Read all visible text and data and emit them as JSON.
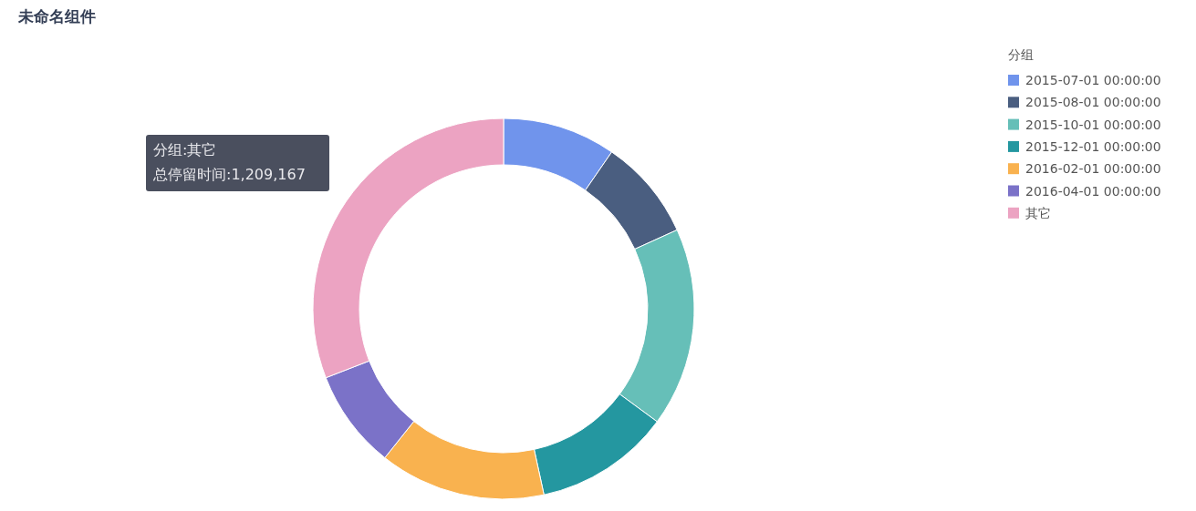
{
  "chart_data": {
    "type": "donut",
    "title": "未命名组件",
    "legend_title": "分组",
    "legend": "top right",
    "categories": [
      "2015-07-01 00:00:00",
      "2015-08-01 00:00:00",
      "2015-10-01 00:00:00",
      "2015-12-01 00:00:00",
      "2016-02-01 00:00:00",
      "2016-04-01 00:00:00",
      "其它"
    ],
    "values": [
      9.6,
      8.6,
      16.9,
      11.5,
      14.1,
      8.4,
      30.9
    ],
    "colors": [
      "#7094ec",
      "#4a5e80",
      "#66bfb8",
      "#2497a0",
      "#f9b24f",
      "#7b72c8",
      "#eca3c2"
    ],
    "annotations": [
      "分组:其它",
      "总停留时间:1,209,167"
    ]
  }
}
